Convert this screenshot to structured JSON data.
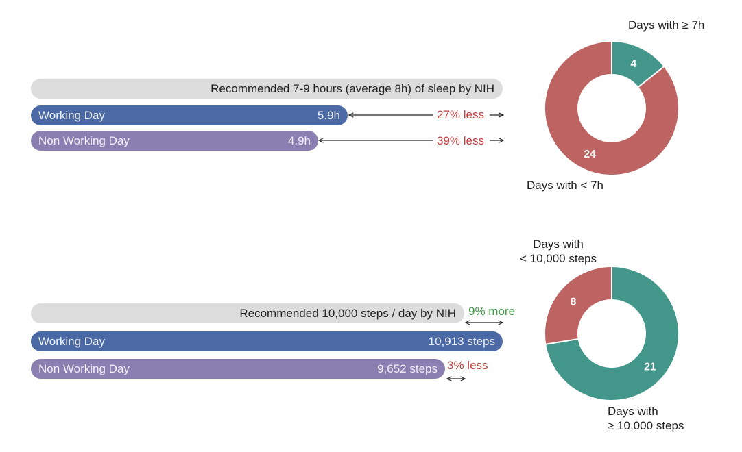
{
  "colors": {
    "recommended": "#dcdcdc",
    "working": "#4a69a5",
    "non_working": "#8a7fb0",
    "meets": "#42978a",
    "below": "#bd6362",
    "less_text": "#c0423f",
    "more_text": "#3f9a47"
  },
  "sleep": {
    "recommended_label": "Recommended 7-9 hours (average 8h) of sleep by NIH",
    "working_label": "Working Day",
    "working_value": "5.9h",
    "working_diff": "27% less",
    "non_working_label": "Non Working Day",
    "non_working_value": "4.9h",
    "non_working_diff": "39% less",
    "donut_top_label": "Days with ≥ 7h",
    "donut_bottom_label": "Days with < 7h"
  },
  "steps": {
    "recommended_label": "Recommended 10,000 steps / day by NIH",
    "working_diff": "9% more",
    "working_label": "Working Day",
    "working_value": "10,913 steps",
    "non_working_label": "Non Working Day",
    "non_working_value": "9,652 steps",
    "non_working_diff": "3% less",
    "donut_top_label_line1": "Days with",
    "donut_top_label_line2": "< 10,000 steps",
    "donut_bottom_label_line1": "Days with",
    "donut_bottom_label_line2": "≥ 10,000 steps"
  },
  "chart_data": [
    {
      "type": "bar",
      "categories": [
        "Recommended",
        "Working Day",
        "Non Working Day"
      ],
      "values": [
        8,
        5.9,
        4.9
      ],
      "unit": "h"
    },
    {
      "type": "pie",
      "labels": [
        "Days with ≥ 7h",
        "Days with < 7h"
      ],
      "values": [
        4,
        24
      ],
      "colors": [
        "#42978a",
        "#bd6362"
      ]
    },
    {
      "type": "bar",
      "categories": [
        "Recommended",
        "Working Day",
        "Non Working Day"
      ],
      "values": [
        10000,
        10913,
        9652
      ],
      "unit": "steps"
    },
    {
      "type": "pie",
      "labels": [
        "Days with < 10,000 steps",
        "Days with ≥ 10,000 steps"
      ],
      "values": [
        8,
        21
      ],
      "colors": [
        "#bd6362",
        "#42978a"
      ]
    }
  ]
}
